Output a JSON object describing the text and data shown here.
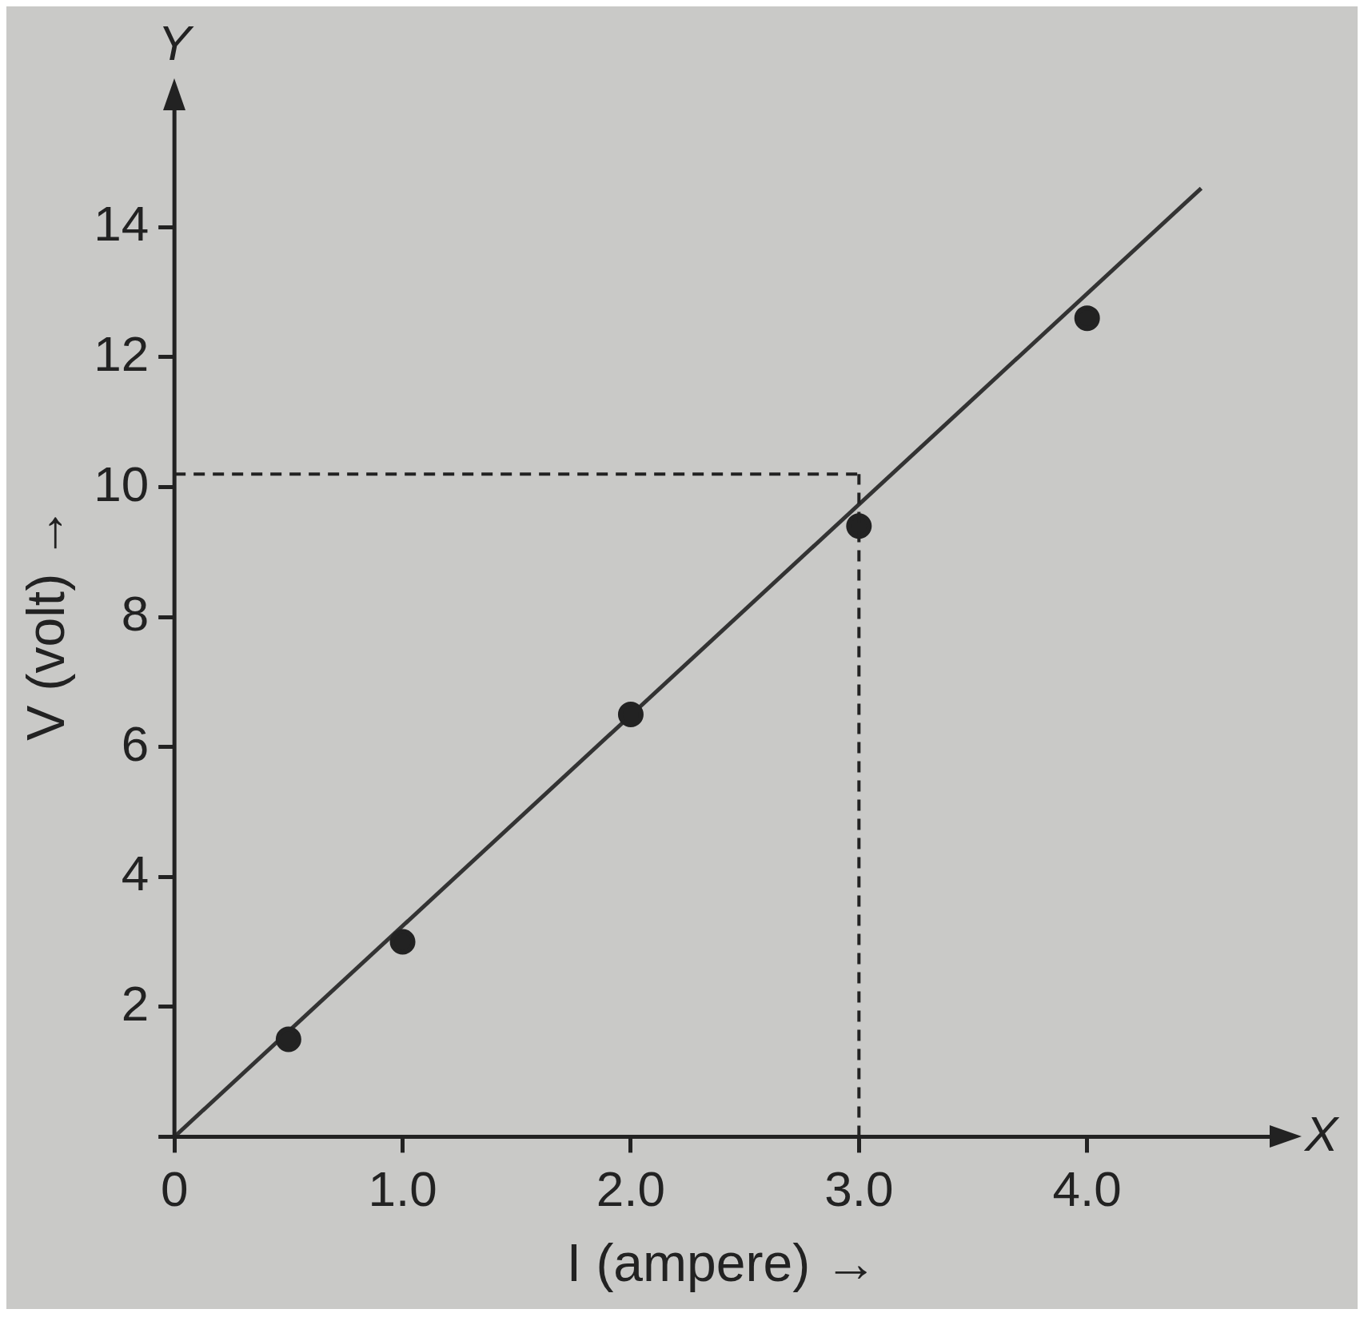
{
  "chart_data": {
    "type": "scatter",
    "xlabel": "I (ampere) →",
    "ylabel": "V (volt) →",
    "annotations": [
      "X",
      "Y"
    ],
    "series": [
      {
        "color": "#222222",
        "marker": "circle",
        "x": [
          0.5,
          1,
          2,
          3,
          4
        ],
        "values": [
          1.5,
          3.0,
          6.5,
          9.4,
          12.6
        ]
      },
      {
        "type": "line",
        "color": "#333333",
        "x": [
          0,
          4.5
        ],
        "values": [
          0,
          14.6
        ]
      }
    ],
    "xlim": [
      0,
      4.8
    ],
    "ylim": [
      0,
      15.8
    ],
    "xticks": [
      {
        "value": 0,
        "label": "0"
      },
      {
        "value": 1,
        "label": "1.0"
      },
      {
        "value": 2,
        "label": "2.0"
      },
      {
        "value": 3,
        "label": "3.0"
      },
      {
        "value": 4,
        "label": "4.0"
      }
    ],
    "yticks": [
      {
        "value": 0,
        "label": null
      },
      2,
      4,
      6,
      8,
      10,
      12,
      14
    ],
    "ref_lines": [
      {
        "axis": "y",
        "value": 10.2,
        "line_style": "dashed"
      },
      {
        "axis": "x",
        "value": 3.0,
        "line_style": "dashed"
      }
    ],
    "grid": false,
    "legend": false
  }
}
